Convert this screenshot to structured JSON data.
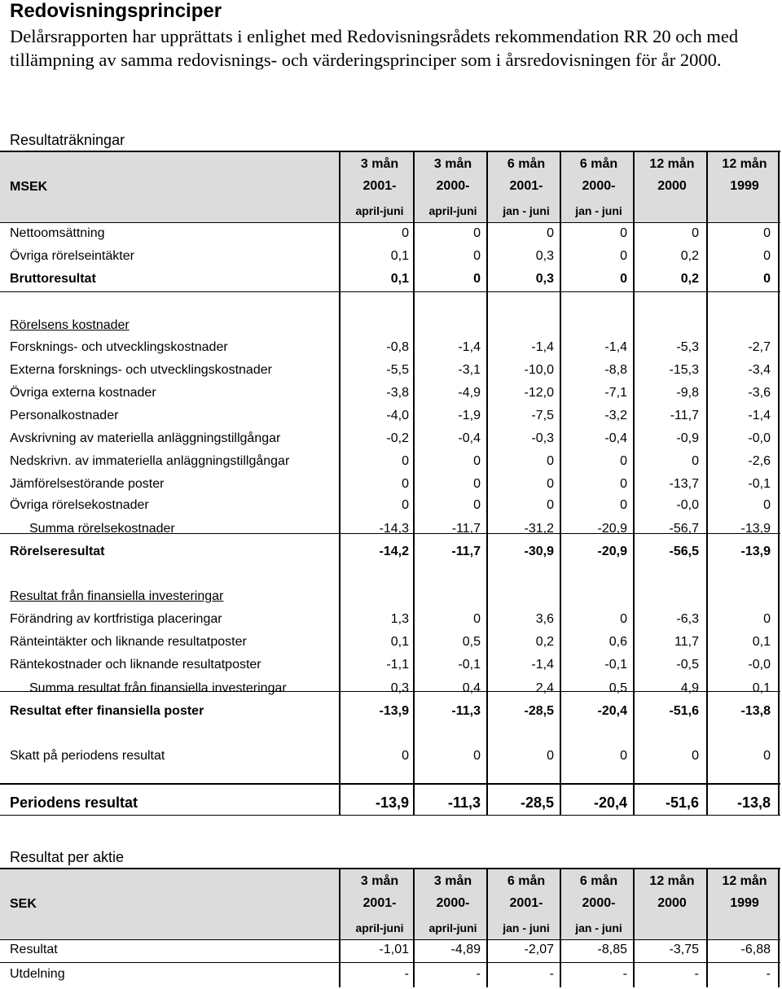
{
  "title": "Redovisningsprinciper",
  "intro": "Delårsrapporten har upprättats i enlighet med Redovisningsrådets rekommendation RR 20 och med tillämpning av samma redovisnings- och värderingsprinciper som i årsredovisningen för år 2000.",
  "income": {
    "section_title": "Resultaträkningar",
    "unit_label": "MSEK",
    "headers": [
      {
        "l1": "3 mån",
        "l2": "2001-",
        "l3": "april-juni"
      },
      {
        "l1": "3 mån",
        "l2": "2000-",
        "l3": "april-juni"
      },
      {
        "l1": "6 mån",
        "l2": "2001-",
        "l3": "jan - juni"
      },
      {
        "l1": "6 mån",
        "l2": "2000-",
        "l3": "jan - juni"
      },
      {
        "l1": "12 mån",
        "l2": "2000",
        "l3": ""
      },
      {
        "l1": "12 mån",
        "l2": "1999",
        "l3": ""
      }
    ],
    "rows": [
      {
        "label": "Nettoomsättning",
        "values": [
          "0",
          "0",
          "0",
          "0",
          "0",
          "0"
        ]
      },
      {
        "label": "Övriga rörelseintäkter",
        "values": [
          "0,1",
          "0",
          "0,3",
          "0",
          "0,2",
          "0"
        ]
      },
      {
        "label": "Bruttoresultat",
        "values": [
          "0,1",
          "0",
          "0,3",
          "0",
          "0,2",
          "0"
        ]
      },
      {
        "label": "Rörelsens kostnader",
        "values": []
      },
      {
        "label": "Forsknings- och utvecklingskostnader",
        "values": [
          "-0,8",
          "-1,4",
          "-1,4",
          "-1,4",
          "-5,3",
          "-2,7"
        ]
      },
      {
        "label": "Externa forsknings- och utvecklingskostnader",
        "values": [
          "-5,5",
          "-3,1",
          "-10,0",
          "-8,8",
          "-15,3",
          "-3,4"
        ]
      },
      {
        "label": "Övriga externa kostnader",
        "values": [
          "-3,8",
          "-4,9",
          "-12,0",
          "-7,1",
          "-9,8",
          "-3,6"
        ]
      },
      {
        "label": "Personalkostnader",
        "values": [
          "-4,0",
          "-1,9",
          "-7,5",
          "-3,2",
          "-11,7",
          "-1,4"
        ]
      },
      {
        "label": "Avskrivning av materiella anläggningstillgångar",
        "values": [
          "-0,2",
          "-0,4",
          "-0,3",
          "-0,4",
          "-0,9",
          "-0,0"
        ]
      },
      {
        "label": "Nedskrivn. av immateriella anläggningstillgångar",
        "values": [
          "0",
          "0",
          "0",
          "0",
          "0",
          "-2,6"
        ]
      },
      {
        "label": "Jämförelsestörande poster",
        "values": [
          "0",
          "0",
          "0",
          "0",
          "-13,7",
          "-0,1"
        ]
      },
      {
        "label": "Övriga rörelsekostnader",
        "values": [
          "0",
          "0",
          "0",
          "0",
          "-0,0",
          "0"
        ]
      },
      {
        "label": "Summa rörelsekostnader",
        "values": [
          "-14,3",
          "-11,7",
          "-31,2",
          "-20,9",
          "-56,7",
          "-13,9"
        ]
      },
      {
        "label": "Rörelseresultat",
        "values": [
          "-14,2",
          "-11,7",
          "-30,9",
          "-20,9",
          "-56,5",
          "-13,9"
        ]
      },
      {
        "label": "Resultat från finansiella investeringar",
        "values": []
      },
      {
        "label": "Förändring av kortfristiga placeringar",
        "values": [
          "1,3",
          "0",
          "3,6",
          "0",
          "-6,3",
          "0"
        ]
      },
      {
        "label": "Ränteintäkter och liknande resultatposter",
        "values": [
          "0,1",
          "0,5",
          "0,2",
          "0,6",
          "11,7",
          "0,1"
        ]
      },
      {
        "label": "Räntekostnader och liknande resultatposter",
        "values": [
          "-1,1",
          "-0,1",
          "-1,4",
          "-0,1",
          "-0,5",
          "-0,0"
        ]
      },
      {
        "label": "Summa resultat från finansiella investeringar",
        "values": [
          "0,3",
          "0,4",
          "2,4",
          "0,5",
          "4,9",
          "0,1"
        ]
      },
      {
        "label": "Resultat efter finansiella poster",
        "values": [
          "-13,9",
          "-11,3",
          "-28,5",
          "-20,4",
          "-51,6",
          "-13,8"
        ]
      },
      {
        "label": "Skatt på periodens resultat",
        "values": [
          "0",
          "0",
          "0",
          "0",
          "0",
          "0"
        ]
      },
      {
        "label": "Periodens resultat",
        "values": [
          "-13,9",
          "-11,3",
          "-28,5",
          "-20,4",
          "-51,6",
          "-13,8"
        ]
      }
    ]
  },
  "per_share": {
    "section_title": "Resultat per aktie",
    "unit_label": "SEK",
    "headers": [
      {
        "l1": "3 mån",
        "l2": "2001-",
        "l3": "april-juni"
      },
      {
        "l1": "3 mån",
        "l2": "2000-",
        "l3": "april-juni"
      },
      {
        "l1": "6 mån",
        "l2": "2001-",
        "l3": "jan - juni"
      },
      {
        "l1": "6 mån",
        "l2": "2000-",
        "l3": "jan - juni"
      },
      {
        "l1": "12 mån",
        "l2": "2000",
        "l3": ""
      },
      {
        "l1": "12 mån",
        "l2": "1999",
        "l3": ""
      }
    ],
    "rows": [
      {
        "label": "Resultat",
        "values": [
          "-1,01",
          "-4,89",
          "-2,07",
          "-8,85",
          "-3,75",
          "-6,88"
        ]
      },
      {
        "label": "Utdelning",
        "values": [
          "-",
          "-",
          "-",
          "-",
          "-",
          "-"
        ]
      }
    ]
  }
}
